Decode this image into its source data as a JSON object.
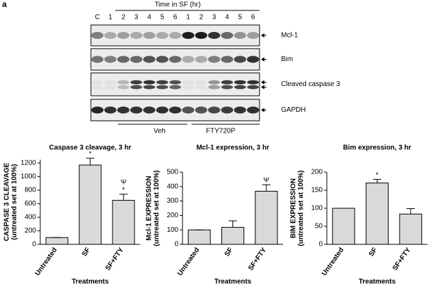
{
  "figure": {
    "panel_letter": "a",
    "time_label": "Time in SF (hr)",
    "lanes": [
      "C",
      "1",
      "2",
      "3",
      "4",
      "5",
      "6",
      "1",
      "2",
      "3",
      "4",
      "5",
      "6"
    ],
    "bands": [
      "Mcl-1",
      "Bim",
      "Cleaved caspase 3",
      "GAPDH"
    ],
    "groups": [
      "Veh",
      "FTY720P"
    ]
  },
  "chart_data": [
    {
      "type": "bar",
      "title": "Caspase 3 cleavage, 3 hr",
      "ylabel": [
        "CASPASE 3 CLEAVAGE",
        "(untreated set at 100%)"
      ],
      "xlabel": "Treatments",
      "categories": [
        "Untreated",
        "SF",
        "SF+FTY"
      ],
      "values": [
        100,
        1170,
        650
      ],
      "errors": [
        0,
        100,
        90
      ],
      "bar_marks": [
        null,
        [
          "*"
        ],
        [
          "Ψ",
          "*"
        ]
      ],
      "color": "#d9d9d9",
      "ylim": [
        0,
        1250
      ],
      "yticks": [
        0,
        200,
        400,
        600,
        800,
        1000,
        1200
      ]
    },
    {
      "type": "bar",
      "title": "Mcl-1 expression, 3 hr",
      "ylabel": [
        "Mcl-1 EXPRESSION",
        "(untreated set at 100%)"
      ],
      "xlabel": "Treatments",
      "categories": [
        "Untreated",
        "SF",
        "SF+FTY"
      ],
      "values": [
        100,
        118,
        368
      ],
      "errors": [
        0,
        45,
        45
      ],
      "bar_marks": [
        null,
        null,
        [
          "Ψ"
        ]
      ],
      "color": "#d9d9d9",
      "ylim": [
        0,
        500
      ],
      "yticks": [
        0,
        100,
        200,
        300,
        400,
        500
      ]
    },
    {
      "type": "bar",
      "title": "Bim expression, 3 hr",
      "ylabel": [
        "BIM EXPRESSION",
        "(untreated set at 100%)"
      ],
      "xlabel": "Treatments",
      "categories": [
        "Untreated",
        "SF",
        "SF+FTY"
      ],
      "values": [
        100,
        170,
        84
      ],
      "errors": [
        0,
        10,
        15
      ],
      "bar_marks": [
        null,
        [
          "*"
        ],
        null
      ],
      "color": "#d9d9d9",
      "ylim": [
        0,
        200
      ],
      "yticks": [
        0,
        50,
        100,
        150,
        200
      ]
    }
  ]
}
